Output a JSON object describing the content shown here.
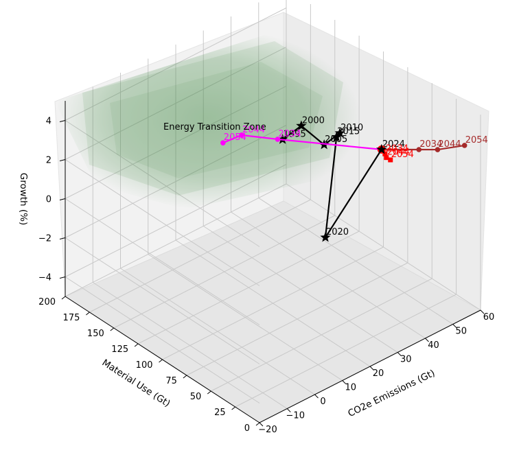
{
  "chart_data": {
    "type": "line3d",
    "xlabel": "CO2e Emissions (Gt)",
    "ylabel": "Material Use (Gt)",
    "zlabel": "Growth (%)",
    "x_ticks": [
      -20,
      -10,
      0,
      10,
      20,
      30,
      40,
      50,
      60
    ],
    "y_ticks": [
      0,
      25,
      50,
      75,
      100,
      125,
      150,
      175,
      200
    ],
    "z_ticks": [
      -4,
      -2,
      0,
      2,
      4
    ],
    "xlim": [
      -20,
      60
    ],
    "ylim": [
      0,
      200
    ],
    "zlim": [
      -5,
      5
    ],
    "grid": true,
    "zone": {
      "label": "Energy Transition Zone",
      "color": "#2e7d32"
    },
    "series": [
      {
        "color": "#000000",
        "marker": "star",
        "points": [
          {
            "label": "1995",
            "x": 20,
            "y": 90,
            "z": 3.7
          },
          {
            "label": "2000",
            "x": 25,
            "y": 85,
            "z": 4.2
          },
          {
            "label": "2005",
            "x": 28,
            "y": 70,
            "z": 3.5
          },
          {
            "label": "2010",
            "x": 33,
            "y": 68,
            "z": 3.8
          },
          {
            "label": "2015",
            "x": 36,
            "y": 80,
            "z": 3.0
          },
          {
            "label": "2020",
            "x": 39,
            "y": 100,
            "z": -3.0
          },
          {
            "label": "2024",
            "x": 40,
            "y": 45,
            "z": 3.2
          }
        ]
      },
      {
        "color": "#ff00ff",
        "marker": "circle",
        "points": [
          {
            "label": "",
            "x": 40,
            "y": 45,
            "z": 3.2
          },
          {
            "label": "2034",
            "x": 27,
            "y": 115,
            "z": 2.4
          },
          {
            "label": "2044",
            "x": 21,
            "y": 135,
            "z": 2.4
          },
          {
            "label": "2054",
            "x": 16,
            "y": 140,
            "z": 2.2
          }
        ]
      },
      {
        "color": "#a52a2a",
        "marker": "circle",
        "points": [
          {
            "label": "",
            "x": 40,
            "y": 45,
            "z": 3.2
          },
          {
            "label": "2034",
            "x": 50,
            "y": 35,
            "z": 2.8
          },
          {
            "label": "2044",
            "x": 55,
            "y": 30,
            "z": 2.6
          },
          {
            "label": "2054",
            "x": 63,
            "y": 25,
            "z": 2.4
          }
        ]
      },
      {
        "color": "#ff0000",
        "marker": "square",
        "points": [
          {
            "label": "",
            "x": 40,
            "y": 45,
            "z": 3.2
          },
          {
            "label": "2034",
            "x": 43,
            "y": 50,
            "z": 2.6
          },
          {
            "label": "2044",
            "x": 47,
            "y": 60,
            "z": 1.8
          },
          {
            "label": "2054",
            "x": 52,
            "y": 70,
            "z": 1.0
          }
        ]
      }
    ],
    "origin_marker": {
      "x": 40,
      "y": 45,
      "z": 3.2,
      "color": "#ff0000"
    }
  }
}
